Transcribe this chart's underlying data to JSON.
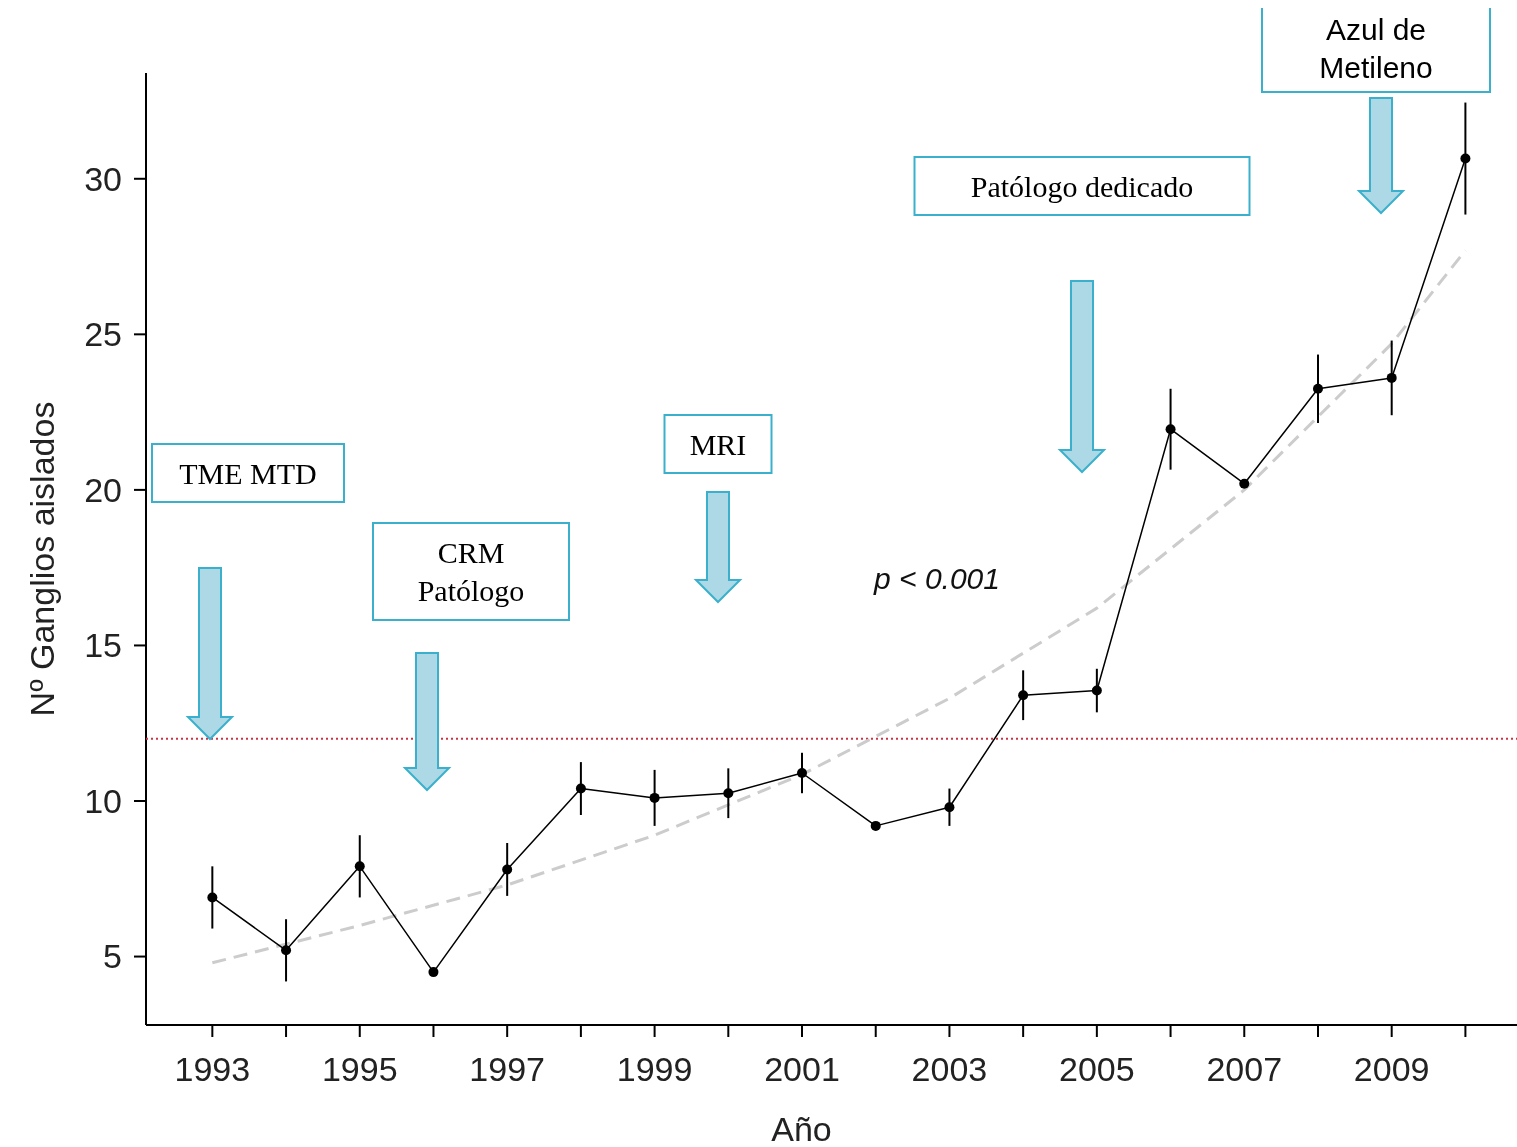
{
  "chart_data": {
    "type": "line",
    "xlabel": "Año",
    "ylabel": "Nº Ganglios aislados",
    "x": [
      1993,
      1994,
      1995,
      1996,
      1997,
      1998,
      1999,
      2000,
      2001,
      2002,
      2003,
      2004,
      2005,
      2006,
      2007,
      2008,
      2009,
      2010
    ],
    "series": [
      {
        "color": "#000000",
        "marker": "circle",
        "line_style": "solid",
        "values": [
          6.9,
          5.2,
          7.9,
          4.5,
          7.8,
          10.4,
          10.1,
          10.25,
          10.9,
          9.2,
          9.8,
          13.4,
          13.55,
          21.95,
          20.2,
          23.25,
          23.6,
          30.65
        ],
        "errors": [
          1.0,
          1.0,
          1.0,
          null,
          0.85,
          0.85,
          0.9,
          0.8,
          0.65,
          null,
          0.6,
          0.8,
          0.7,
          1.3,
          null,
          1.1,
          1.2,
          1.8
        ]
      },
      {
        "color": "#cccccc",
        "marker": "none",
        "line_style": "dashed",
        "x": [
          1993,
          1995,
          1997,
          1999,
          2001,
          2003,
          2005,
          2007,
          2009,
          2010
        ],
        "values": [
          4.8,
          6.0,
          7.3,
          8.9,
          10.85,
          13.3,
          16.2,
          20.0,
          24.7,
          27.7
        ]
      }
    ],
    "ref_lines": [
      {
        "axis": "y",
        "value": 12,
        "color": "#cc3344",
        "line_style": "dotted"
      }
    ],
    "annotations": [
      "TME MTD",
      "CRM Patólogo",
      "MRI",
      "Patólogo dedicado",
      "Azul de Metileno",
      "p < 0.001"
    ],
    "xlim": [
      1992.1,
      2010.7
    ],
    "ylim": [
      2.8,
      33.4
    ],
    "xticks": [
      1993,
      {
        "value": 1994,
        "label": null
      },
      1995,
      {
        "value": 1996,
        "label": null
      },
      1997,
      {
        "value": 1998,
        "label": null
      },
      1999,
      {
        "value": 2000,
        "label": null
      },
      2001,
      {
        "value": 2002,
        "label": null
      },
      2003,
      {
        "value": 2004,
        "label": null
      },
      2005,
      {
        "value": 2006,
        "label": null
      },
      2007,
      {
        "value": 2008,
        "label": null
      },
      2009,
      {
        "value": 2010,
        "label": null
      }
    ],
    "yticks": [
      5,
      10,
      15,
      20,
      25,
      30
    ],
    "grid": false
  }
}
